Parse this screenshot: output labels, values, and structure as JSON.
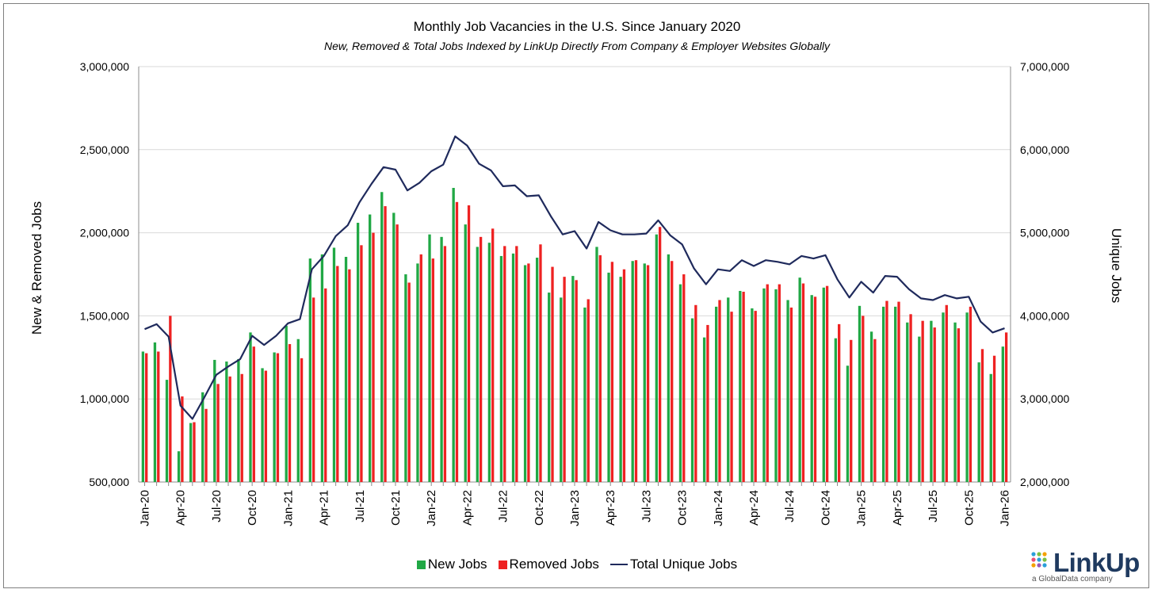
{
  "chart_data": {
    "type": "bar",
    "title": "Monthly Job Vacancies in the U.S. Since January 2020",
    "subtitle": "New, Removed & Total Jobs Indexed by LinkUp Directly From Company & Employer Websites Globally",
    "ylabel_left": "New & Removed Jobs",
    "ylabel_right": "Unique Jobs",
    "ylim_left": [
      500000,
      3000000
    ],
    "ylim_right": [
      2000000,
      7000000
    ],
    "yticks_left": [
      "500,000",
      "1,000,000",
      "1,500,000",
      "2,000,000",
      "2,500,000",
      "3,000,000"
    ],
    "yticks_right": [
      "2,000,000",
      "3,000,000",
      "4,000,000",
      "5,000,000",
      "6,000,000",
      "7,000,000"
    ],
    "grid": true,
    "legend": "bottom",
    "x_tick_labels": [
      "Jan-20",
      "Apr-20",
      "Jul-20",
      "Oct-20",
      "Jan-21",
      "Apr-21",
      "Jul-21",
      "Oct-21",
      "Jan-22",
      "Apr-22",
      "Jul-22",
      "Oct-22",
      "Jan-23",
      "Apr-23",
      "Jul-23",
      "Oct-23",
      "Jan-24",
      "Apr-24",
      "Jul-24",
      "Oct-24",
      "Jan-25",
      "Apr-25",
      "Jul-25",
      "Oct-25",
      "Jan-26"
    ],
    "x": [
      "Jan-20",
      "Feb-20",
      "Mar-20",
      "Apr-20",
      "May-20",
      "Jun-20",
      "Jul-20",
      "Aug-20",
      "Sep-20",
      "Oct-20",
      "Nov-20",
      "Dec-20",
      "Jan-21",
      "Feb-21",
      "Mar-21",
      "Apr-21",
      "May-21",
      "Jun-21",
      "Jul-21",
      "Aug-21",
      "Sep-21",
      "Oct-21",
      "Nov-21",
      "Dec-21",
      "Jan-22",
      "Feb-22",
      "Mar-22",
      "Apr-22",
      "May-22",
      "Jun-22",
      "Jul-22",
      "Aug-22",
      "Sep-22",
      "Oct-22",
      "Nov-22",
      "Dec-22",
      "Jan-23",
      "Feb-23",
      "Mar-23",
      "Apr-23",
      "May-23",
      "Jun-23",
      "Jul-23",
      "Aug-23",
      "Sep-23",
      "Oct-23",
      "Nov-23",
      "Dec-23",
      "Jan-24",
      "Feb-24",
      "Mar-24",
      "Apr-24",
      "May-24",
      "Jun-24",
      "Jul-24",
      "Aug-24",
      "Sep-24",
      "Oct-24",
      "Nov-24",
      "Dec-24",
      "Jan-25",
      "Feb-25",
      "Mar-25",
      "Apr-25",
      "May-25",
      "Jun-25",
      "Jul-25",
      "Aug-25",
      "Sep-25",
      "Oct-25",
      "Nov-25",
      "Dec-25",
      "Jan-26"
    ],
    "series": [
      {
        "name": "New Jobs",
        "color": "#21a845",
        "axis": "left",
        "type": "bar",
        "values": [
          1285000,
          1340000,
          1115000,
          685000,
          855000,
          1040000,
          1235000,
          1225000,
          1240000,
          1400000,
          1185000,
          1280000,
          1440000,
          1360000,
          1845000,
          1870000,
          1910000,
          1855000,
          2060000,
          2110000,
          2245000,
          2120000,
          1750000,
          1815000,
          1990000,
          1975000,
          2270000,
          2050000,
          1915000,
          1940000,
          1860000,
          1875000,
          1805000,
          1850000,
          1640000,
          1610000,
          1740000,
          1550000,
          1915000,
          1760000,
          1735000,
          1830000,
          1815000,
          1990000,
          1870000,
          1690000,
          1485000,
          1370000,
          1555000,
          1610000,
          1650000,
          1545000,
          1665000,
          1660000,
          1595000,
          1730000,
          1625000,
          1670000,
          1365000,
          1200000,
          1560000,
          1405000,
          1555000,
          1555000,
          1460000,
          1375000,
          1470000,
          1520000,
          1460000,
          1520000,
          1220000,
          1150000,
          1315000
        ]
      },
      {
        "name": "Removed Jobs",
        "color": "#ee2222",
        "axis": "left",
        "type": "bar",
        "values": [
          1275000,
          1285000,
          1500000,
          1015000,
          860000,
          940000,
          1090000,
          1135000,
          1150000,
          1315000,
          1170000,
          1275000,
          1330000,
          1245000,
          1610000,
          1665000,
          1800000,
          1780000,
          1925000,
          2000000,
          2160000,
          2050000,
          1700000,
          1870000,
          1845000,
          1920000,
          2185000,
          2165000,
          1975000,
          2025000,
          1920000,
          1920000,
          1815000,
          1930000,
          1795000,
          1735000,
          1715000,
          1600000,
          1865000,
          1825000,
          1780000,
          1835000,
          1805000,
          2035000,
          1830000,
          1750000,
          1565000,
          1445000,
          1595000,
          1525000,
          1645000,
          1530000,
          1690000,
          1690000,
          1550000,
          1695000,
          1615000,
          1680000,
          1450000,
          1355000,
          1500000,
          1360000,
          1590000,
          1585000,
          1510000,
          1470000,
          1430000,
          1565000,
          1425000,
          1555000,
          1300000,
          1260000,
          1400000
        ]
      },
      {
        "name": "Total Unique Jobs",
        "color": "#1f2a5c",
        "axis": "right",
        "type": "line",
        "values": [
          3840000,
          3900000,
          3750000,
          2920000,
          2760000,
          3020000,
          3290000,
          3390000,
          3480000,
          3760000,
          3650000,
          3760000,
          3910000,
          3960000,
          4560000,
          4720000,
          4960000,
          5090000,
          5370000,
          5590000,
          5790000,
          5760000,
          5510000,
          5600000,
          5740000,
          5820000,
          6160000,
          6050000,
          5830000,
          5750000,
          5560000,
          5570000,
          5440000,
          5450000,
          5200000,
          4980000,
          5020000,
          4810000,
          5130000,
          5030000,
          4980000,
          4980000,
          4990000,
          5150000,
          4970000,
          4860000,
          4570000,
          4380000,
          4560000,
          4540000,
          4670000,
          4600000,
          4670000,
          4650000,
          4620000,
          4720000,
          4690000,
          4730000,
          4440000,
          4220000,
          4410000,
          4280000,
          4480000,
          4470000,
          4320000,
          4210000,
          4190000,
          4250000,
          4210000,
          4230000,
          3930000,
          3800000,
          3850000
        ]
      }
    ]
  },
  "logo": {
    "name": "LinkUp",
    "tagline": "a GlobalData company"
  }
}
